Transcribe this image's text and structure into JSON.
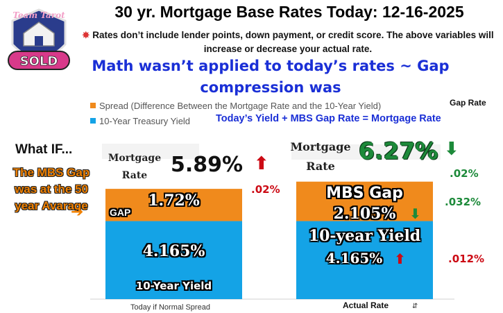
{
  "header": {
    "logo_text_top": "Team Tarot",
    "logo_text_bottom": "SOLD",
    "title": "30 yr. Mortgage Base Rates Today: 12-16-2025",
    "disclaimer": "Rates don’t include lender points, down payment, or credit score. The above variables will increase or decrease your actual rate.",
    "headline_line1": "Math wasn’t applied to today’s rates ~ Gap",
    "headline_line2": "compression was",
    "gap_rate_label": "Gap Rate",
    "formula": "Today’s  Yield +  MBS Gap Rate = Mortgage Rate"
  },
  "colors": {
    "spread": "#f08a1c",
    "treasury": "#14a3e6",
    "headline_blue": "#1a2fd6",
    "down_red": "#cc0a14",
    "up_green": "#1d8a3a"
  },
  "side_note": {
    "what_if": "What IF...",
    "mbs_gap_note": "The MBS Gap was at the 50 year Avarage",
    "arrow_icon": "right-arrow"
  },
  "chart_data": {
    "type": "bar",
    "stacked": true,
    "categories": [
      "Today if Normal Spread",
      "Actual Rate"
    ],
    "series": [
      {
        "name": "10-Year Treasury Yield",
        "values": [
          4.165,
          4.165
        ]
      },
      {
        "name": "Spread (Difference Between the Mortgage Rate and the 10-Year Yield)",
        "values": [
          1.72,
          2.105
        ]
      }
    ],
    "legend": [
      "Spread (Difference Between the Mortgage Rate and the 10-Year Yield)",
      "10-Year Treasury Yield"
    ],
    "legend_position": "top-left",
    "ylim": [
      0,
      6.4
    ],
    "grid": false,
    "bars": [
      {
        "mortgage_label": "Mortgage Rate",
        "total_label": "5.89%",
        "total_arrow": "up-arrow",
        "total_change": ".02%",
        "spread_label_prefix": "GAP",
        "spread_label": "1.72%",
        "yield_label": "4.165%",
        "yield_name": "10-Year Yield"
      },
      {
        "mortgage_label": "Mortgage Rate",
        "total_label": "6.27%",
        "total_arrow": "down-arrow",
        "total_change": ".02%",
        "spread_label_prefix": "MBS Gap",
        "spread_label": "2.105%",
        "spread_arrow": "down-arrow",
        "spread_change": ".032%",
        "yield_label_prefix": "10-year Yield",
        "yield_label": "4.165%",
        "yield_arrow": "up-arrow",
        "yield_change": ".012%"
      }
    ]
  }
}
